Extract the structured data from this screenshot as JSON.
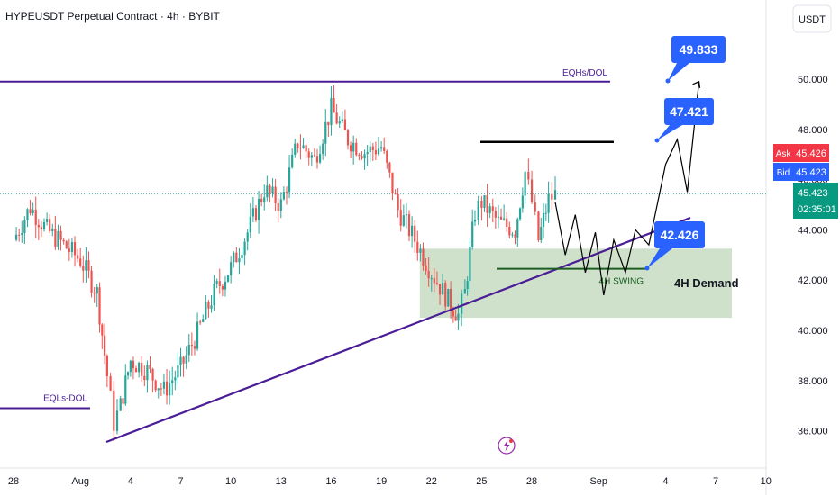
{
  "header": {
    "title": "HYPEUSDT Perpetual Contract · 4h · BYBIT",
    "currency_button": "USDT"
  },
  "colors": {
    "up": "#26a69a",
    "down": "#ef5350",
    "purple_line": "#4a1d96",
    "callout_blue": "#2962ff",
    "demand_fill": "#a8c8a0",
    "ask_red": "#f23645",
    "price_green": "#089981",
    "text": "#131722",
    "axis_text": "#131722"
  },
  "chart_data": {
    "type": "candlestick",
    "title": "HYPEUSDT Perpetual Contract · 4h · BYBIT",
    "y_axis": {
      "ticks": [
        "50.000",
        "48.000",
        "46.000",
        "44.000",
        "42.000",
        "40.000",
        "38.000",
        "36.000"
      ],
      "values": [
        50,
        48,
        46,
        44,
        42,
        40,
        38,
        36
      ],
      "range": [
        35.0,
        52.5
      ]
    },
    "x_axis": {
      "ticks": [
        "28",
        "Aug",
        "4",
        "7",
        "10",
        "13",
        "16",
        "19",
        "22",
        "25",
        "28",
        "Sep",
        "4",
        "7",
        "10"
      ]
    },
    "price_path": {
      "description_points_day_price": [
        [
          0,
          43.6
        ],
        [
          1,
          44.9
        ],
        [
          2,
          44.0
        ],
        [
          3,
          43.4
        ],
        [
          4,
          42.8
        ],
        [
          5,
          41.5
        ],
        [
          5.6,
          38.2
        ],
        [
          6,
          36.3
        ],
        [
          6.4,
          37.0
        ],
        [
          7,
          38.8
        ],
        [
          8,
          38.4
        ],
        [
          9,
          37.6
        ],
        [
          10,
          38.5
        ],
        [
          11,
          39.9
        ],
        [
          12,
          41.5
        ],
        [
          13,
          42.5
        ],
        [
          14,
          43.9
        ],
        [
          15,
          45.6
        ],
        [
          16,
          45.0
        ],
        [
          17,
          47.5
        ],
        [
          18,
          46.8
        ],
        [
          19,
          48.8
        ],
        [
          20,
          47.6
        ],
        [
          21,
          47.1
        ],
        [
          22,
          47.3
        ],
        [
          23,
          44.8
        ],
        [
          24,
          43.6
        ],
        [
          25,
          42.3
        ],
        [
          26,
          41.2
        ],
        [
          26.6,
          40.6
        ],
        [
          27,
          41.5
        ],
        [
          27.6,
          44.7
        ],
        [
          28,
          45.1
        ],
        [
          29,
          44.3
        ],
        [
          30,
          44.0
        ],
        [
          30.6,
          46.3
        ],
        [
          31,
          45.1
        ],
        [
          31.4,
          43.6
        ],
        [
          32,
          45.2
        ],
        [
          32.4,
          45.4
        ]
      ]
    },
    "current": {
      "ask_label": "Ask",
      "ask_value": "45.426",
      "bid_label": "Bid",
      "bid_value": "45.423",
      "last_price": "45.423",
      "countdown": "02:35:01"
    },
    "annotations": {
      "eqh_label": "EQHs/DOL",
      "eqh_price": 49.9,
      "eql_label": "EQLs-DOL",
      "eql_price": 36.9,
      "demand_label": "4H Demand",
      "demand_top": 43.25,
      "demand_bottom": 40.5,
      "swing_label": "4H SWING",
      "swing_price": 42.45,
      "resistance_price": 47.5,
      "callouts": [
        {
          "value": "49.833",
          "price": 49.833
        },
        {
          "value": "47.421",
          "price": 47.421
        },
        {
          "value": "42.426",
          "price": 42.426
        }
      ],
      "projection_path_day_price": [
        [
          32.4,
          45.1
        ],
        [
          33,
          43.0
        ],
        [
          33.6,
          44.6
        ],
        [
          34.2,
          42.3
        ],
        [
          34.8,
          43.9
        ],
        [
          35.3,
          41.4
        ],
        [
          35.9,
          43.6
        ],
        [
          36.6,
          42.3
        ],
        [
          37.2,
          44.0
        ],
        [
          38.0,
          43.4
        ],
        [
          39.0,
          46.6
        ],
        [
          39.7,
          47.6
        ],
        [
          40.3,
          45.5
        ],
        [
          41.0,
          49.9
        ]
      ]
    }
  }
}
